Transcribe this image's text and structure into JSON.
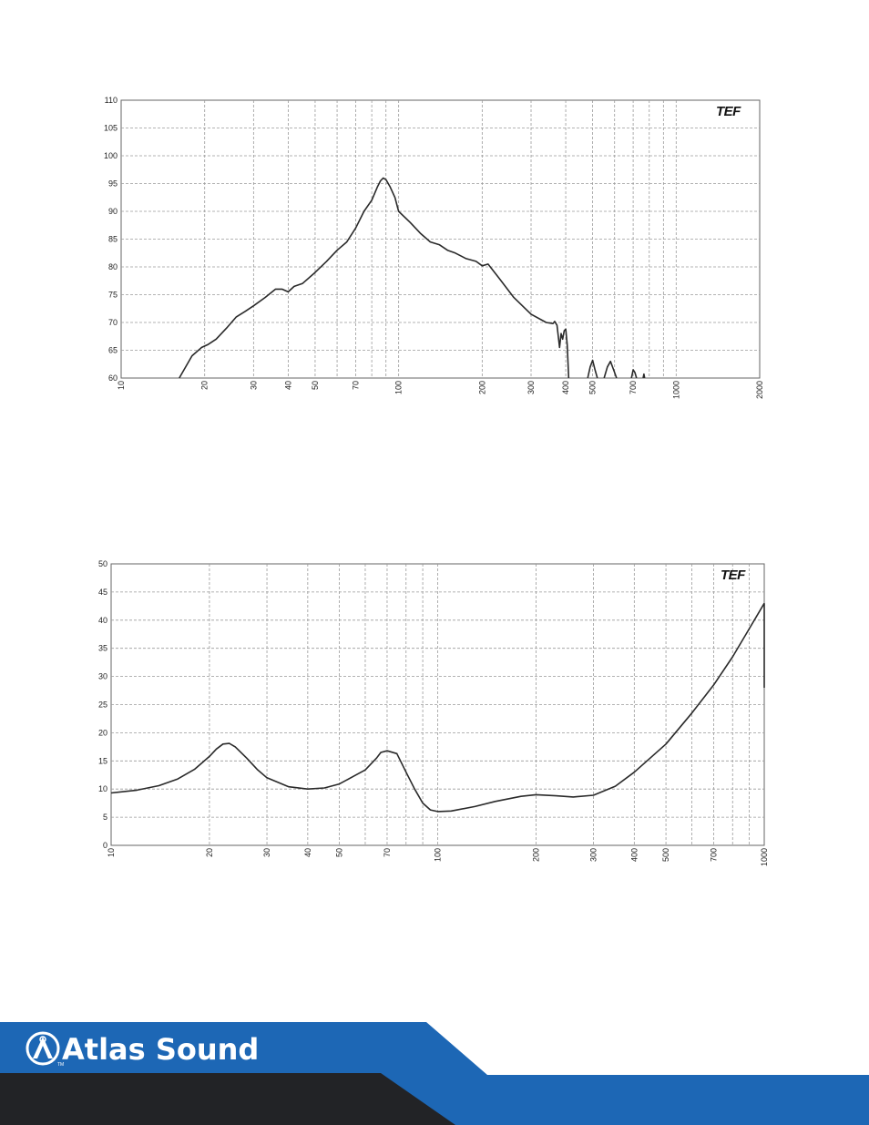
{
  "brand": {
    "name": "Atlas Sound",
    "trademark": "TM",
    "colors": {
      "blue": "#1d67b5",
      "dark": "#222326"
    }
  },
  "chart_data": [
    {
      "type": "line",
      "x_scale": "log",
      "logo": "TEF",
      "xlim": [
        10,
        2000
      ],
      "ylim": [
        60,
        110
      ],
      "x_ticks": [
        "10",
        "20",
        "30",
        "40",
        "50",
        "70",
        "100",
        "200",
        "300",
        "400",
        "500",
        "700",
        "1000",
        "2000"
      ],
      "y_ticks": [
        "60",
        "65",
        "70",
        "75",
        "80",
        "85",
        "90",
        "95",
        "100",
        "105",
        "110"
      ],
      "grid": true,
      "series": [
        {
          "color": "#2a2a2a",
          "x": [
            16.2,
            18,
            19.5,
            20.5,
            22,
            24,
            26,
            28,
            30,
            33,
            36,
            38,
            40,
            42,
            45,
            50,
            55,
            60,
            65,
            70,
            75,
            80,
            84,
            86,
            88,
            90,
            93,
            97,
            100,
            110,
            120,
            130,
            140,
            150,
            160,
            175,
            190,
            200,
            210,
            230,
            260,
            300,
            340,
            360,
            365,
            372,
            380,
            385,
            390,
            395,
            400,
            405,
            410
          ],
          "y": [
            60,
            64,
            65.5,
            66,
            67,
            69,
            71,
            72,
            73,
            74.5,
            76,
            76,
            75.5,
            76.5,
            77,
            79,
            81,
            83,
            84.5,
            87,
            90,
            92,
            94.5,
            95.5,
            96,
            95.7,
            94.5,
            92.5,
            90,
            88,
            86,
            84.5,
            84,
            83,
            82.5,
            81.5,
            81,
            80.2,
            80.5,
            78,
            74.5,
            71.5,
            70,
            69.8,
            70.2,
            69.5,
            65.5,
            68,
            67,
            68.5,
            68.8,
            66,
            60
          ]
        },
        {
          "color": "#2a2a2a",
          "x": [
            480,
            490,
            500,
            510,
            520
          ],
          "y": [
            60,
            62,
            63.2,
            61.5,
            60
          ]
        },
        {
          "color": "#2a2a2a",
          "x": [
            550,
            565,
            580,
            595,
            610
          ],
          "y": [
            60,
            62,
            63,
            61.5,
            60
          ]
        },
        {
          "color": "#2a2a2a",
          "x": [
            690,
            700,
            710,
            720
          ],
          "y": [
            60,
            61.5,
            61,
            60
          ]
        },
        {
          "color": "#2a2a2a",
          "x": [
            760,
            765,
            770
          ],
          "y": [
            60,
            60.7,
            60
          ]
        }
      ]
    },
    {
      "type": "line",
      "x_scale": "log",
      "logo": "TEF",
      "xlim": [
        10,
        1000
      ],
      "ylim": [
        0,
        50
      ],
      "x_ticks": [
        "10",
        "20",
        "30",
        "40",
        "50",
        "70",
        "100",
        "200",
        "300",
        "400",
        "500",
        "700",
        "1000"
      ],
      "y_ticks": [
        "0",
        "5",
        "10",
        "15",
        "20",
        "25",
        "30",
        "35",
        "40",
        "45",
        "50"
      ],
      "grid": true,
      "series": [
        {
          "color": "#2a2a2a",
          "x": [
            10,
            12,
            14,
            16,
            18,
            20,
            21,
            22,
            23,
            24,
            26,
            28,
            30,
            35,
            40,
            45,
            50,
            55,
            60,
            65,
            67,
            70,
            75,
            80,
            85,
            90,
            95,
            100,
            110,
            130,
            150,
            180,
            200,
            230,
            260,
            300,
            350,
            400,
            500,
            600,
            700,
            800,
            900,
            1000
          ],
          "y": [
            9.3,
            9.8,
            10.6,
            11.8,
            13.5,
            15.8,
            17.1,
            18,
            18.1,
            17.5,
            15.5,
            13.5,
            12,
            10.4,
            10,
            10.2,
            10.9,
            12.2,
            13.4,
            15.5,
            16.5,
            16.8,
            16.3,
            13,
            10,
            7.5,
            6.3,
            6,
            6.1,
            6.9,
            7.8,
            8.7,
            9,
            8.8,
            8.6,
            8.9,
            10.5,
            13,
            18,
            23.5,
            28.5,
            33.5,
            38.5,
            43
          ]
        },
        {
          "color": "#2a2a2a",
          "x": [
            1000,
            1000
          ],
          "y": [
            43,
            28
          ]
        }
      ]
    }
  ]
}
